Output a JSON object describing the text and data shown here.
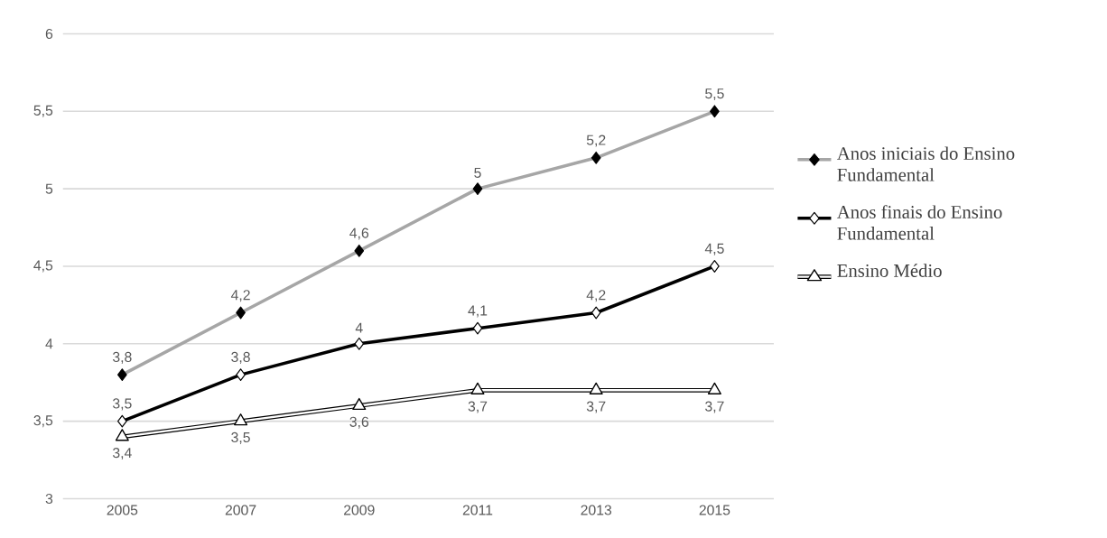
{
  "chart_data": {
    "type": "line",
    "categories": [
      "2005",
      "2007",
      "2009",
      "2011",
      "2013",
      "2015"
    ],
    "series": [
      {
        "name": "Anos iniciais do Ensino Fundamental",
        "color": "#a6a6a6",
        "marker": "diamond",
        "values": [
          3.8,
          4.2,
          4.6,
          5,
          5.2,
          5.5
        ],
        "value_labels": [
          "3,8",
          "4,2",
          "4,6",
          "5",
          "5,2",
          "5,5"
        ]
      },
      {
        "name": "Anos finais do Ensino Fundamental",
        "color": "#000000",
        "marker": "diamond",
        "values": [
          3.5,
          3.8,
          4,
          4.1,
          4.2,
          4.5
        ],
        "value_labels": [
          "3,5",
          "3,8",
          "4",
          "4,1",
          "4,2",
          "4,5"
        ]
      },
      {
        "name": "Ensino Médio",
        "color": "#000000",
        "marker": "triangle",
        "values": [
          3.4,
          3.5,
          3.6,
          3.7,
          3.7,
          3.7
        ],
        "value_labels": [
          "3,4",
          "3,5",
          "3,6",
          "3,7",
          "3,7",
          "3,7"
        ]
      }
    ],
    "ylim": [
      3,
      6
    ],
    "yticks": [
      3,
      {
        "value": 3.5,
        "label": "3,5"
      },
      4,
      {
        "value": 4.5,
        "label": "4,5"
      },
      5,
      {
        "value": 5.5,
        "label": "5,5"
      },
      6
    ],
    "grid": "y",
    "legend": "right"
  }
}
